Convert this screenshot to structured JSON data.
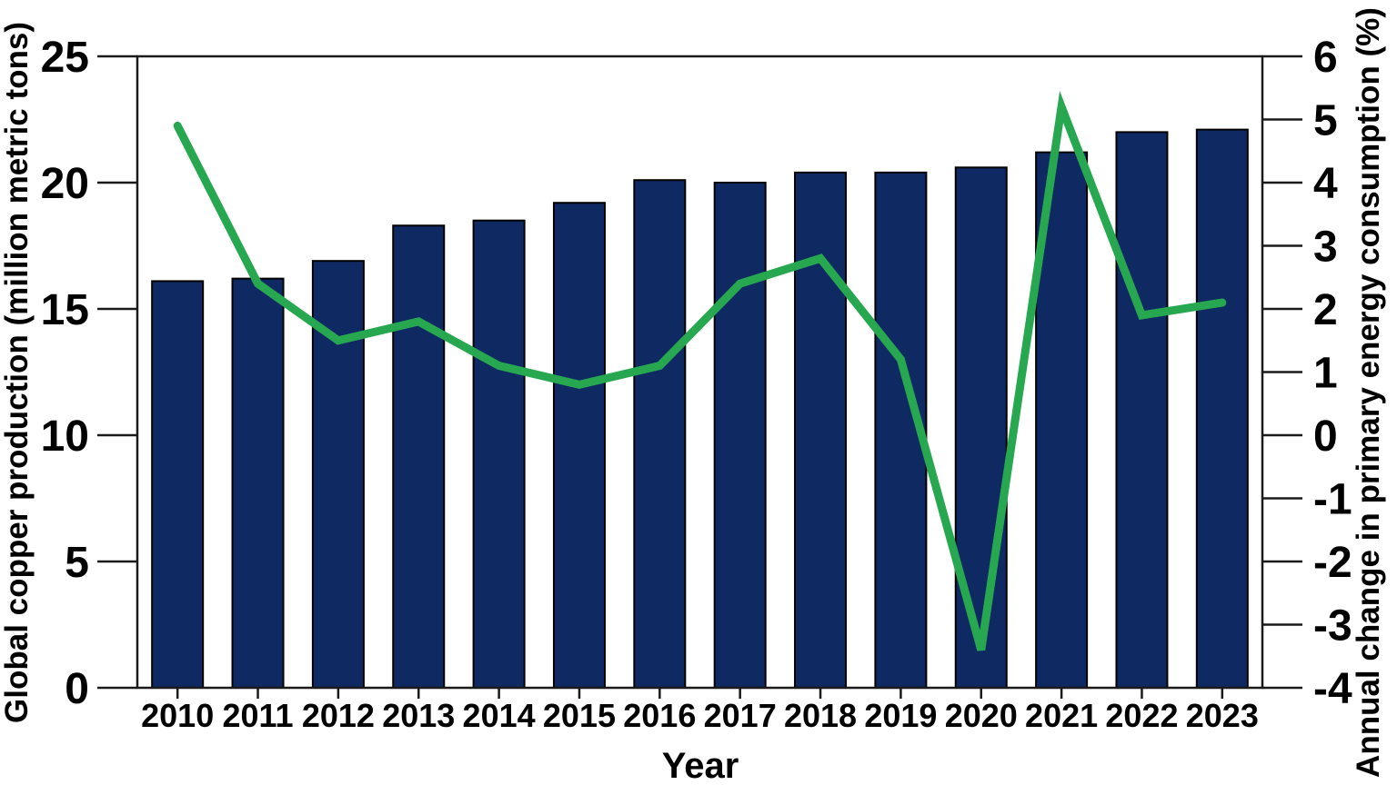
{
  "chart_data": {
    "type": "bar+line",
    "categories": [
      "2010",
      "2011",
      "2012",
      "2013",
      "2014",
      "2015",
      "2016",
      "2017",
      "2018",
      "2019",
      "2020",
      "2021",
      "2022",
      "2023"
    ],
    "series": [
      {
        "name": "Global copper production",
        "type": "bar",
        "axis": "left",
        "values": [
          16.1,
          16.2,
          16.9,
          18.3,
          18.5,
          19.2,
          20.1,
          20.0,
          20.4,
          20.4,
          20.6,
          21.2,
          22.0,
          22.1
        ],
        "color": "#0f2963",
        "edge_color": "#000000"
      },
      {
        "name": "Annual change in primary energy consumption",
        "type": "line",
        "axis": "right",
        "values": [
          4.9,
          2.4,
          1.5,
          1.8,
          1.1,
          0.8,
          1.1,
          2.4,
          2.8,
          1.2,
          -3.4,
          5.2,
          1.9,
          2.1
        ],
        "color": "#27a850"
      }
    ],
    "xlabel": "Year",
    "ylabel_left": "Global copper production (million metric tons)",
    "ylabel_right": "Annual change in primary energy consumption (%)",
    "left_axis": {
      "min": 0,
      "max": 25,
      "tick_step": 5,
      "tick_labels": [
        "0",
        "5",
        "10",
        "15",
        "20",
        "25"
      ]
    },
    "right_axis": {
      "min": -4,
      "max": 6,
      "tick_step": 1,
      "tick_labels": [
        "-4",
        "-3",
        "-2",
        "-1",
        "0",
        "1",
        "2",
        "3",
        "4",
        "5",
        "6"
      ]
    },
    "grid": false,
    "legend": false,
    "frame": true,
    "axis_color": "#1a1a1a",
    "background_color": "#ffffff"
  }
}
